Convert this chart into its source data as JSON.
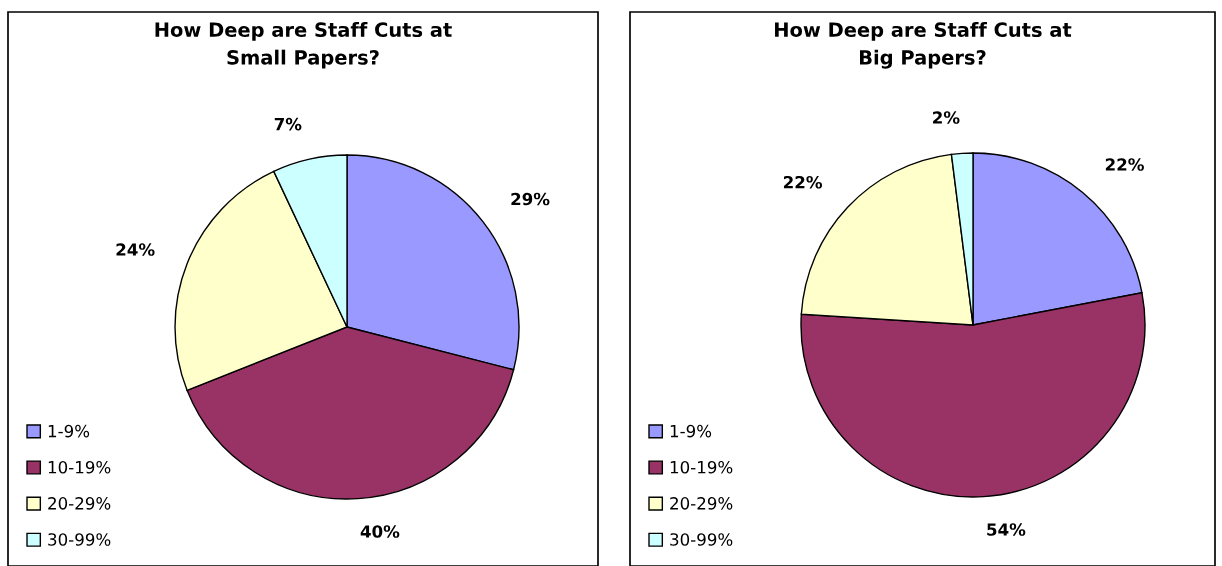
{
  "chart_data": [
    {
      "type": "pie",
      "title": "How Deep are Staff Cuts at\nSmall Papers?",
      "categories": [
        "1-9%",
        "10-19%",
        "20-29%",
        "30-99%"
      ],
      "values": [
        29,
        40,
        24,
        7
      ],
      "colors": [
        "#9999ff",
        "#993366",
        "#ffffcc",
        "#ccffff"
      ],
      "value_labels": [
        "29%",
        "40%",
        "24%",
        "7%"
      ],
      "legend": "bottom left"
    },
    {
      "type": "pie",
      "title": "How Deep are Staff Cuts at\nBig Papers?",
      "categories": [
        "1-9%",
        "10-19%",
        "20-29%",
        "30-99%"
      ],
      "values": [
        22,
        54,
        22,
        2
      ],
      "colors": [
        "#9999ff",
        "#993366",
        "#ffffcc",
        "#ccffff"
      ],
      "value_labels": [
        "22%",
        "54%",
        "22%",
        "2%"
      ],
      "legend": "bottom left"
    }
  ]
}
